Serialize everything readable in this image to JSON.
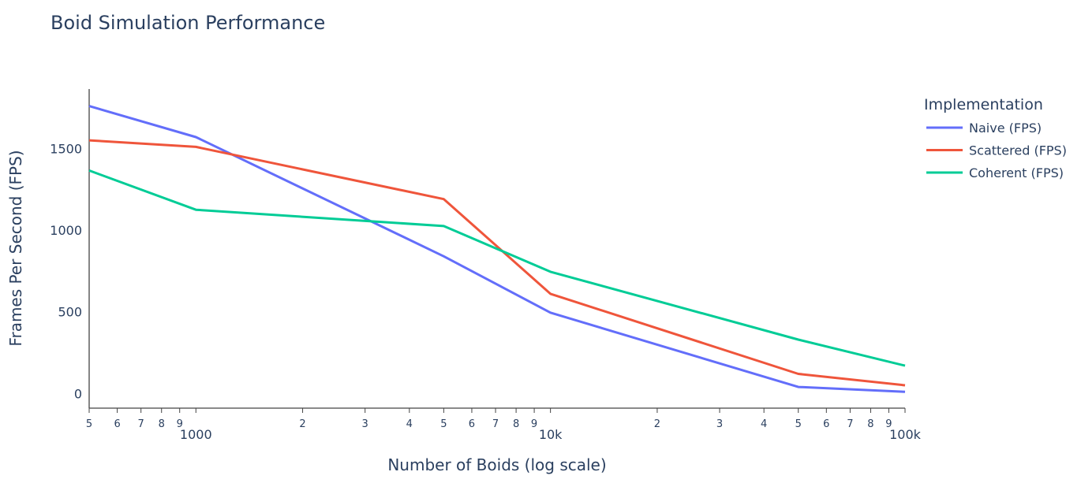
{
  "chart_data": {
    "type": "line",
    "title": "Boid Simulation Performance",
    "xlabel": "Number of Boids (log scale)",
    "ylabel": "Frames Per Second (FPS)",
    "x_scale": "log",
    "xlim": [
      500,
      100000
    ],
    "ylim": [
      -90,
      1840
    ],
    "grid": false,
    "legend": {
      "title": "Implementation",
      "position": "right"
    },
    "x_ticks": [
      {
        "value": 500,
        "minor": "5"
      },
      {
        "value": 600,
        "minor": "6"
      },
      {
        "value": 700,
        "minor": "7"
      },
      {
        "value": 800,
        "minor": "8"
      },
      {
        "value": 900,
        "minor": "9"
      },
      {
        "value": 1000,
        "major": "1000"
      },
      {
        "value": 2000,
        "minor": "2"
      },
      {
        "value": 3000,
        "minor": "3"
      },
      {
        "value": 4000,
        "minor": "4"
      },
      {
        "value": 5000,
        "minor": "5"
      },
      {
        "value": 6000,
        "minor": "6"
      },
      {
        "value": 7000,
        "minor": "7"
      },
      {
        "value": 8000,
        "minor": "8"
      },
      {
        "value": 9000,
        "minor": "9"
      },
      {
        "value": 10000,
        "major": "10k"
      },
      {
        "value": 20000,
        "minor": "2"
      },
      {
        "value": 30000,
        "minor": "3"
      },
      {
        "value": 40000,
        "minor": "4"
      },
      {
        "value": 50000,
        "minor": "5"
      },
      {
        "value": 60000,
        "minor": "6"
      },
      {
        "value": 70000,
        "minor": "7"
      },
      {
        "value": 80000,
        "minor": "8"
      },
      {
        "value": 90000,
        "minor": "9"
      },
      {
        "value": 100000,
        "major": "100k"
      }
    ],
    "y_ticks": [
      {
        "value": 0,
        "label": "0"
      },
      {
        "value": 500,
        "label": "500"
      },
      {
        "value": 1000,
        "label": "1000"
      },
      {
        "value": 1500,
        "label": "1500"
      }
    ],
    "x": [
      500,
      1000,
      5000,
      10000,
      50000,
      100000
    ],
    "series": [
      {
        "name": "Naive (FPS)",
        "color": "#636efa",
        "values": [
          1760,
          1570,
          840,
          495,
          40,
          10
        ]
      },
      {
        "name": "Scattered (FPS)",
        "color": "#ef553b",
        "values": [
          1550,
          1510,
          1190,
          610,
          120,
          50
        ]
      },
      {
        "name": "Coherent (FPS)",
        "color": "#00cc96",
        "values": [
          1365,
          1125,
          1025,
          745,
          330,
          170
        ]
      }
    ]
  }
}
